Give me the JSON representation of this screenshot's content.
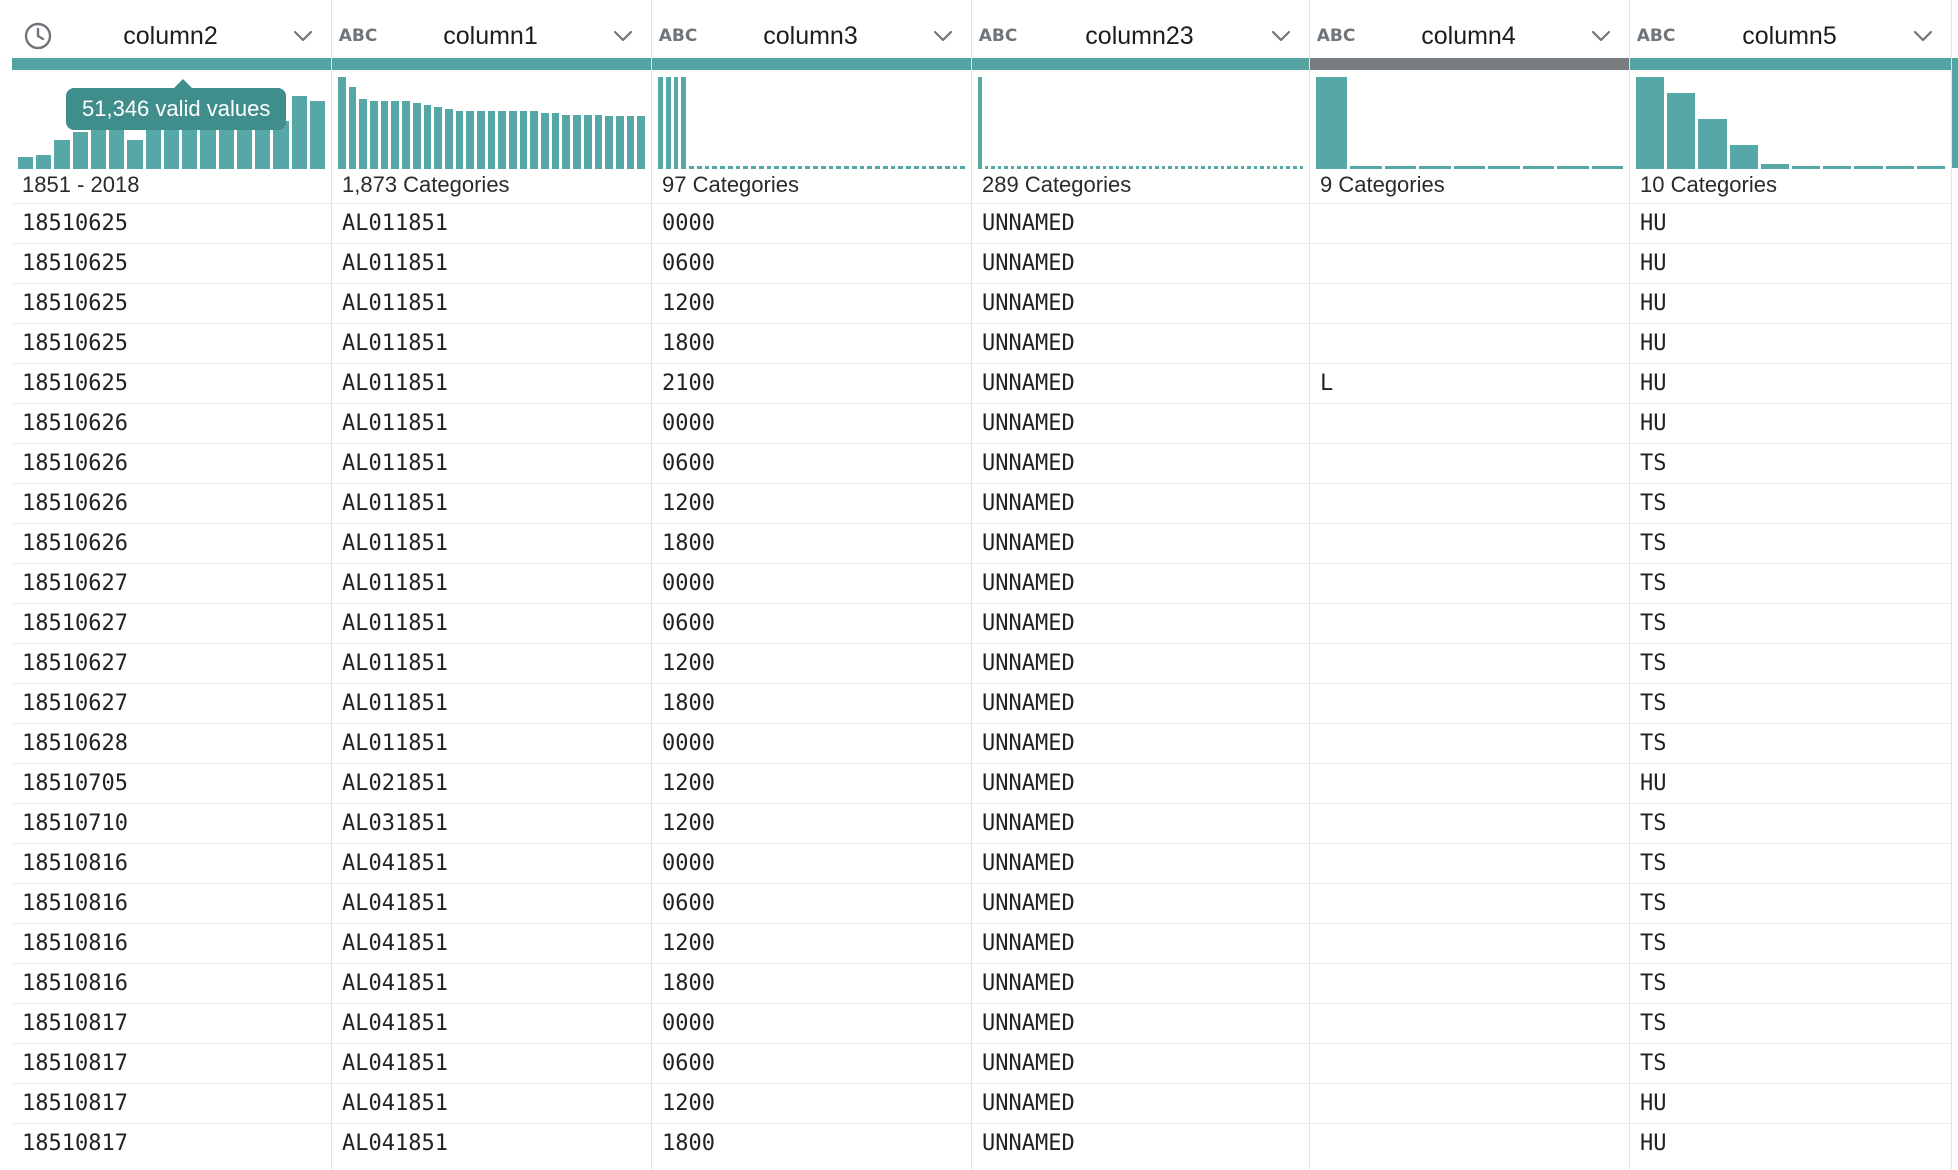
{
  "tooltip": "51,346 valid values",
  "columns": [
    {
      "name": "column2",
      "type": "clock",
      "summary": "1851 - 2018",
      "hist": [
        12,
        14,
        30,
        38,
        40,
        40,
        30,
        40,
        40,
        40,
        40,
        40,
        40,
        40,
        50,
        75,
        70
      ]
    },
    {
      "name": "column1",
      "type": "ABC",
      "summary": "1,873 Categories",
      "hist": [
        95,
        85,
        72,
        70,
        70,
        70,
        70,
        68,
        66,
        64,
        62,
        60,
        60,
        60,
        60,
        60,
        60,
        60,
        60,
        58,
        58,
        56,
        56,
        56,
        56,
        55,
        55,
        55,
        55
      ]
    },
    {
      "name": "column3",
      "type": "ABC",
      "summary": "97 Categories",
      "hist": [
        95,
        95,
        95,
        95,
        3,
        3,
        3,
        3,
        3,
        3,
        3,
        3,
        3,
        3,
        3,
        3,
        3,
        3,
        3,
        3,
        3,
        3,
        3,
        3,
        3,
        3,
        3,
        3,
        3,
        3,
        3,
        3,
        3,
        3,
        3,
        3,
        3,
        3,
        3,
        3
      ]
    },
    {
      "name": "column23",
      "type": "ABC",
      "summary": "289 Categories",
      "hist": [
        95,
        3,
        3,
        3,
        3,
        3,
        3,
        3,
        3,
        3,
        3,
        3,
        3,
        3,
        3,
        3,
        3,
        3,
        3,
        3,
        3,
        3,
        3,
        3,
        3,
        3,
        3,
        3,
        3,
        3,
        3,
        3,
        3,
        3,
        3,
        3,
        3,
        3,
        3,
        3,
        3,
        3,
        3,
        3,
        3,
        3,
        3,
        3,
        3,
        3
      ]
    },
    {
      "name": "column4",
      "type": "ABC",
      "summary": "9 Categories",
      "grey": true,
      "hist": [
        95,
        3,
        3,
        3,
        3,
        3,
        3,
        3,
        3
      ]
    },
    {
      "name": "column5",
      "type": "ABC",
      "summary": "10 Categories",
      "hist": [
        95,
        78,
        52,
        25,
        5,
        3,
        3,
        3,
        3,
        3
      ]
    }
  ],
  "rows": [
    [
      "18510625",
      "AL011851",
      "0000",
      "UNNAMED",
      "",
      "HU"
    ],
    [
      "18510625",
      "AL011851",
      "0600",
      "UNNAMED",
      "",
      "HU"
    ],
    [
      "18510625",
      "AL011851",
      "1200",
      "UNNAMED",
      "",
      "HU"
    ],
    [
      "18510625",
      "AL011851",
      "1800",
      "UNNAMED",
      "",
      "HU"
    ],
    [
      "18510625",
      "AL011851",
      "2100",
      "UNNAMED",
      "L",
      "HU"
    ],
    [
      "18510626",
      "AL011851",
      "0000",
      "UNNAMED",
      "",
      "HU"
    ],
    [
      "18510626",
      "AL011851",
      "0600",
      "UNNAMED",
      "",
      "TS"
    ],
    [
      "18510626",
      "AL011851",
      "1200",
      "UNNAMED",
      "",
      "TS"
    ],
    [
      "18510626",
      "AL011851",
      "1800",
      "UNNAMED",
      "",
      "TS"
    ],
    [
      "18510627",
      "AL011851",
      "0000",
      "UNNAMED",
      "",
      "TS"
    ],
    [
      "18510627",
      "AL011851",
      "0600",
      "UNNAMED",
      "",
      "TS"
    ],
    [
      "18510627",
      "AL011851",
      "1200",
      "UNNAMED",
      "",
      "TS"
    ],
    [
      "18510627",
      "AL011851",
      "1800",
      "UNNAMED",
      "",
      "TS"
    ],
    [
      "18510628",
      "AL011851",
      "0000",
      "UNNAMED",
      "",
      "TS"
    ],
    [
      "18510705",
      "AL021851",
      "1200",
      "UNNAMED",
      "",
      "HU"
    ],
    [
      "18510710",
      "AL031851",
      "1200",
      "UNNAMED",
      "",
      "TS"
    ],
    [
      "18510816",
      "AL041851",
      "0000",
      "UNNAMED",
      "",
      "TS"
    ],
    [
      "18510816",
      "AL041851",
      "0600",
      "UNNAMED",
      "",
      "TS"
    ],
    [
      "18510816",
      "AL041851",
      "1200",
      "UNNAMED",
      "",
      "TS"
    ],
    [
      "18510816",
      "AL041851",
      "1800",
      "UNNAMED",
      "",
      "TS"
    ],
    [
      "18510817",
      "AL041851",
      "0000",
      "UNNAMED",
      "",
      "TS"
    ],
    [
      "18510817",
      "AL041851",
      "0600",
      "UNNAMED",
      "",
      "TS"
    ],
    [
      "18510817",
      "AL041851",
      "1200",
      "UNNAMED",
      "",
      "HU"
    ],
    [
      "18510817",
      "AL041851",
      "1800",
      "UNNAMED",
      "",
      "HU"
    ]
  ]
}
